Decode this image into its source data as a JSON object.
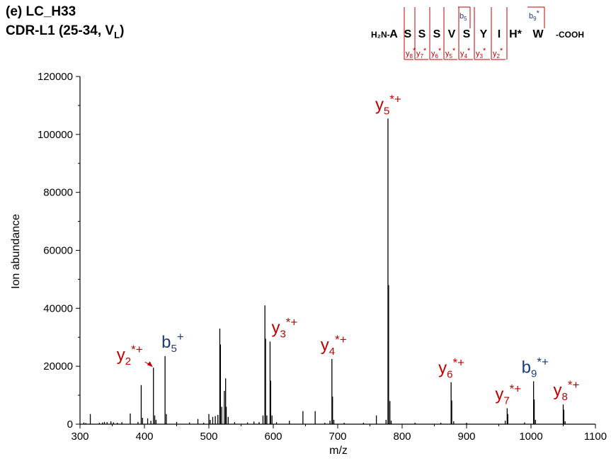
{
  "header": {
    "panel_title": "(e) LC_H33",
    "region_title": "CDR-L1 (25-34, V",
    "region_subscript": "L",
    "region_close": ")"
  },
  "sequence": {
    "n_term": "H₂N-",
    "c_term": "-COOH",
    "residues": [
      "A",
      "S",
      "S",
      "S",
      "V",
      "S",
      "Y",
      "I",
      "H*",
      "W"
    ],
    "b_fragments": [
      {
        "label": "b",
        "sub": "5",
        "sup": ""
      },
      {
        "label": "b",
        "sub": "9",
        "sup": "*"
      }
    ],
    "y_fragments": [
      {
        "label": "y",
        "sub": "8",
        "sup": "*"
      },
      {
        "label": "y",
        "sub": "7",
        "sup": "*"
      },
      {
        "label": "y",
        "sub": "6",
        "sup": "*"
      },
      {
        "label": "y",
        "sub": "5",
        "sup": "*"
      },
      {
        "label": "y",
        "sub": "4",
        "sup": "*"
      },
      {
        "label": "y",
        "sub": "3",
        "sup": "*"
      },
      {
        "label": "y",
        "sub": "2",
        "sup": "*"
      }
    ]
  },
  "colors": {
    "y_ion": "#c00000",
    "b_ion": "#1f3a7a",
    "spectrum": "#000000"
  },
  "chart_data": {
    "type": "bar",
    "xlabel": "m/z",
    "ylabel": "Ion abundance",
    "xlim": [
      300,
      1100
    ],
    "ylim": [
      0,
      120000
    ],
    "xticks": [
      300,
      400,
      500,
      600,
      700,
      800,
      900,
      1000,
      1100
    ],
    "yticks": [
      0,
      20000,
      40000,
      60000,
      80000,
      100000,
      120000
    ],
    "peaks": [
      {
        "mz": 306,
        "y": 600
      },
      {
        "mz": 309,
        "y": 400
      },
      {
        "mz": 316,
        "y": 3500
      },
      {
        "mz": 330,
        "y": 500
      },
      {
        "mz": 335,
        "y": 600
      },
      {
        "mz": 338,
        "y": 800
      },
      {
        "mz": 342,
        "y": 700
      },
      {
        "mz": 348,
        "y": 1000
      },
      {
        "mz": 352,
        "y": 600
      },
      {
        "mz": 358,
        "y": 500
      },
      {
        "mz": 365,
        "y": 700
      },
      {
        "mz": 378,
        "y": 3700
      },
      {
        "mz": 390,
        "y": 800
      },
      {
        "mz": 395,
        "y": 13500
      },
      {
        "mz": 397,
        "y": 2200
      },
      {
        "mz": 405,
        "y": 2000
      },
      {
        "mz": 410,
        "y": 1200
      },
      {
        "mz": 414,
        "y": 19500
      },
      {
        "mz": 416,
        "y": 3000
      },
      {
        "mz": 418,
        "y": 1500
      },
      {
        "mz": 432,
        "y": 23500
      },
      {
        "mz": 434,
        "y": 3500
      },
      {
        "mz": 450,
        "y": 800
      },
      {
        "mz": 470,
        "y": 600
      },
      {
        "mz": 483,
        "y": 1800
      },
      {
        "mz": 492,
        "y": 500
      },
      {
        "mz": 500,
        "y": 3500
      },
      {
        "mz": 502,
        "y": 1500
      },
      {
        "mz": 506,
        "y": 2500
      },
      {
        "mz": 510,
        "y": 2800
      },
      {
        "mz": 514,
        "y": 3200
      },
      {
        "mz": 517,
        "y": 33000
      },
      {
        "mz": 518,
        "y": 27500
      },
      {
        "mz": 520,
        "y": 6000
      },
      {
        "mz": 524,
        "y": 11500
      },
      {
        "mz": 526,
        "y": 15800
      },
      {
        "mz": 527,
        "y": 6000
      },
      {
        "mz": 530,
        "y": 2500
      },
      {
        "mz": 540,
        "y": 700
      },
      {
        "mz": 560,
        "y": 600
      },
      {
        "mz": 570,
        "y": 900
      },
      {
        "mz": 578,
        "y": 700
      },
      {
        "mz": 584,
        "y": 3000
      },
      {
        "mz": 587,
        "y": 41000
      },
      {
        "mz": 588,
        "y": 29500
      },
      {
        "mz": 590,
        "y": 3000
      },
      {
        "mz": 595,
        "y": 28500
      },
      {
        "mz": 596,
        "y": 15000
      },
      {
        "mz": 598,
        "y": 3000
      },
      {
        "mz": 605,
        "y": 700
      },
      {
        "mz": 625,
        "y": 1200
      },
      {
        "mz": 646,
        "y": 4500
      },
      {
        "mz": 665,
        "y": 4500
      },
      {
        "mz": 680,
        "y": 500
      },
      {
        "mz": 688,
        "y": 1200
      },
      {
        "mz": 691,
        "y": 22500
      },
      {
        "mz": 692,
        "y": 9500
      },
      {
        "mz": 694,
        "y": 1500
      },
      {
        "mz": 710,
        "y": 500
      },
      {
        "mz": 740,
        "y": 500
      },
      {
        "mz": 760,
        "y": 3000
      },
      {
        "mz": 775,
        "y": 1500
      },
      {
        "mz": 778,
        "y": 105500
      },
      {
        "mz": 779,
        "y": 48000
      },
      {
        "mz": 781,
        "y": 8000
      },
      {
        "mz": 783,
        "y": 1200
      },
      {
        "mz": 820,
        "y": 500
      },
      {
        "mz": 860,
        "y": 500
      },
      {
        "mz": 876,
        "y": 14500
      },
      {
        "mz": 877,
        "y": 8200
      },
      {
        "mz": 880,
        "y": 1000
      },
      {
        "mz": 900,
        "y": 500
      },
      {
        "mz": 960,
        "y": 1200
      },
      {
        "mz": 963,
        "y": 5500
      },
      {
        "mz": 964,
        "y": 3500
      },
      {
        "mz": 990,
        "y": 600
      },
      {
        "mz": 1004,
        "y": 14800
      },
      {
        "mz": 1005,
        "y": 8500
      },
      {
        "mz": 1007,
        "y": 1500
      },
      {
        "mz": 1050,
        "y": 6800
      },
      {
        "mz": 1051,
        "y": 5000
      },
      {
        "mz": 1053,
        "y": 1000
      }
    ],
    "annotations": [
      {
        "ion": "y",
        "sub": "2",
        "sup": "*+",
        "color": "#c00000",
        "mz": 414,
        "y": 19500
      },
      {
        "ion": "b",
        "sub": "5",
        "sup": "+",
        "color": "#1f3a7a",
        "mz": 432,
        "y": 23500
      },
      {
        "ion": "y",
        "sub": "3",
        "sup": "*+",
        "color": "#c00000",
        "mz": 595,
        "y": 28500
      },
      {
        "ion": "y",
        "sub": "4",
        "sup": "*+",
        "color": "#c00000",
        "mz": 691,
        "y": 22500
      },
      {
        "ion": "y",
        "sub": "5",
        "sup": "*+",
        "color": "#c00000",
        "mz": 778,
        "y": 105500
      },
      {
        "ion": "y",
        "sub": "6",
        "sup": "*+",
        "color": "#c00000",
        "mz": 876,
        "y": 14500
      },
      {
        "ion": "y",
        "sub": "7",
        "sup": "*+",
        "color": "#c00000",
        "mz": 963,
        "y": 5500
      },
      {
        "ion": "b",
        "sub": "9",
        "sup": "*+",
        "color": "#1f3a7a",
        "mz": 1004,
        "y": 14800
      },
      {
        "ion": "y",
        "sub": "8",
        "sup": "*+",
        "color": "#c00000",
        "mz": 1050,
        "y": 6800
      }
    ]
  }
}
